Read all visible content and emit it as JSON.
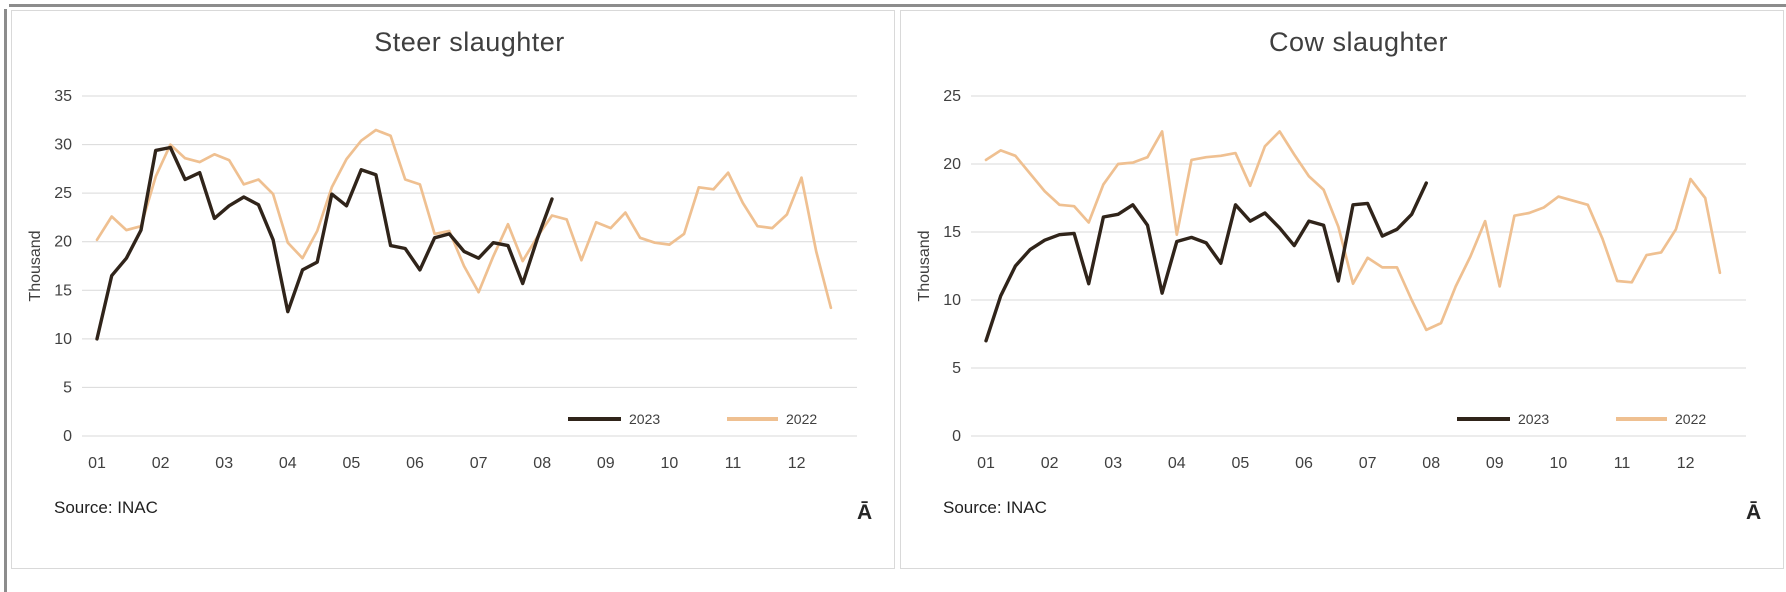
{
  "styles": {
    "grid_color": "#d9d9d9",
    "axis_text_color": "#404040",
    "title_color": "#3f3f3f",
    "panel_border": "#d9d9d9",
    "frame_line_color": "#8c8c8c",
    "series_2023_color": "#30241a",
    "series_2022_color": "#efc091"
  },
  "chart_data": [
    {
      "type": "line",
      "title": "Steer slaughter",
      "ylabel": "Thousand",
      "xlabel": "",
      "source_note": "Source: INAC",
      "corner_glyph": "Ā",
      "x_tick_labels": [
        "01",
        "02",
        "03",
        "04",
        "05",
        "06",
        "07",
        "08",
        "09",
        "10",
        "11",
        "12"
      ],
      "points_per_month": 4.333,
      "ylim": [
        0,
        35
      ],
      "y_tick_step": 5,
      "grid": true,
      "legend_position": "inside-lower-right",
      "series": [
        {
          "name": "2023",
          "color": "#30241a",
          "values": [
            10.0,
            16.5,
            18.3,
            21.2,
            29.4,
            29.7,
            26.4,
            27.1,
            22.4,
            23.7,
            24.6,
            23.8,
            20.2,
            12.8,
            17.1,
            17.9,
            24.9,
            23.7,
            27.4,
            26.9,
            19.6,
            19.3,
            17.1,
            20.4,
            20.8,
            19.0,
            18.3,
            19.9,
            19.6,
            15.7,
            20.3,
            24.4
          ]
        },
        {
          "name": "2022",
          "color": "#efc091",
          "values": [
            20.2,
            22.6,
            21.2,
            21.6,
            26.7,
            30.0,
            28.6,
            28.2,
            29.0,
            28.4,
            25.9,
            26.4,
            24.9,
            19.9,
            18.3,
            21.1,
            25.6,
            28.5,
            30.4,
            31.5,
            30.9,
            26.4,
            25.9,
            20.8,
            21.1,
            17.5,
            14.8,
            18.5,
            21.8,
            18.0,
            20.5,
            22.7,
            22.3,
            18.1,
            22.0,
            21.4,
            23.0,
            20.4,
            19.9,
            19.7,
            20.8,
            25.6,
            25.4,
            27.1,
            24.0,
            21.6,
            21.4,
            22.8,
            26.6,
            19.0,
            13.2
          ]
        }
      ]
    },
    {
      "type": "line",
      "title": "Cow slaughter",
      "ylabel": "Thousand",
      "xlabel": "",
      "source_note": "Source: INAC",
      "corner_glyph": "Ā",
      "x_tick_labels": [
        "01",
        "02",
        "03",
        "04",
        "05",
        "06",
        "07",
        "08",
        "09",
        "10",
        "11",
        "12"
      ],
      "points_per_month": 4.333,
      "ylim": [
        0,
        25
      ],
      "y_tick_step": 5,
      "grid": true,
      "legend_position": "inside-lower-right",
      "series": [
        {
          "name": "2023",
          "color": "#30241a",
          "values": [
            7.0,
            10.3,
            12.5,
            13.7,
            14.4,
            14.8,
            14.9,
            11.2,
            16.1,
            16.3,
            17.0,
            15.5,
            10.5,
            14.3,
            14.6,
            14.2,
            12.7,
            17.0,
            15.8,
            16.4,
            15.3,
            14.0,
            15.8,
            15.5,
            11.4,
            17.0,
            17.1,
            14.7,
            15.2,
            16.3,
            18.6
          ]
        },
        {
          "name": "2022",
          "color": "#efc091",
          "values": [
            20.3,
            21.0,
            20.6,
            19.3,
            18.0,
            17.0,
            16.9,
            15.7,
            18.5,
            20.0,
            20.1,
            20.5,
            22.4,
            14.8,
            20.3,
            20.5,
            20.6,
            20.8,
            18.4,
            21.3,
            22.4,
            20.7,
            19.1,
            18.1,
            15.4,
            11.2,
            13.1,
            12.4,
            12.4,
            10.0,
            7.8,
            8.3,
            11.0,
            13.2,
            15.8,
            11.0,
            16.2,
            16.4,
            16.8,
            17.6,
            17.3,
            17.0,
            14.5,
            11.4,
            11.3,
            13.3,
            13.5,
            15.2,
            18.9,
            17.5,
            12.0
          ]
        }
      ]
    }
  ]
}
